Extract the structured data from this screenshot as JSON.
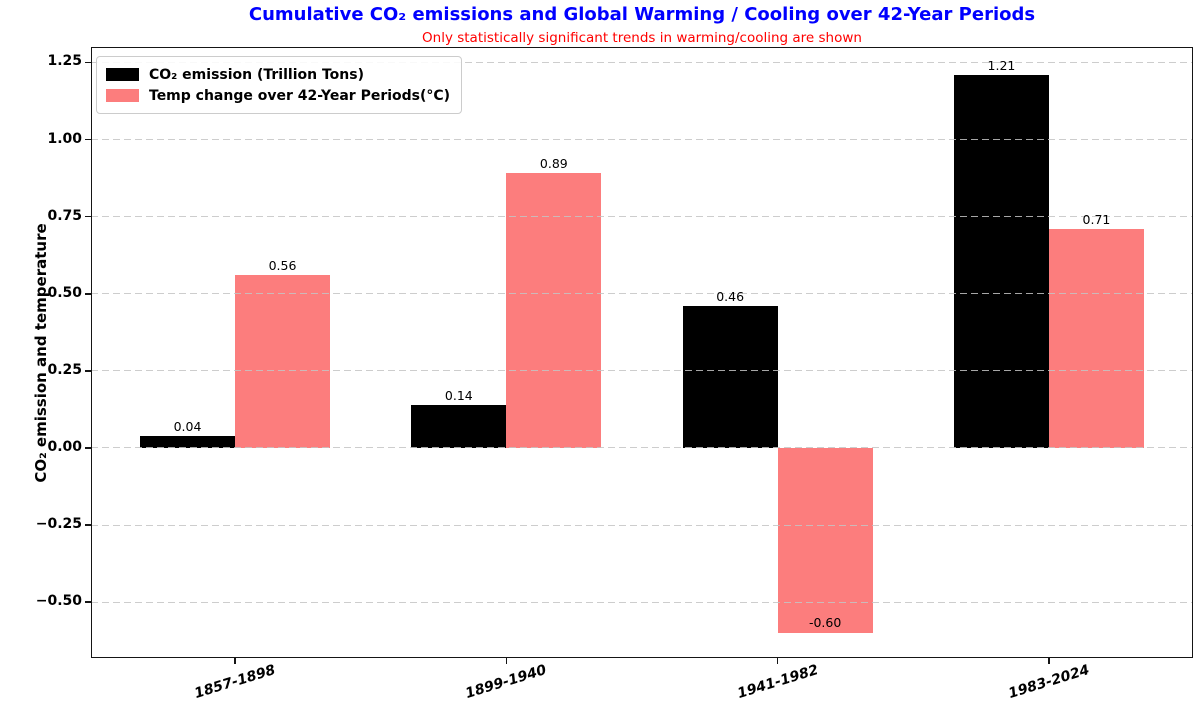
{
  "chart_data": {
    "type": "bar",
    "title": "Cumulative CO₂ emissions and Global Warming / Cooling over 42-Year Periods",
    "subtitle": "Only statistically significant trends in warming/cooling are shown",
    "title_color": "#0000ff",
    "subtitle_color": "#ff0000",
    "ylabel": "CO₂ emission and temperature",
    "categories": [
      "1857-1898",
      "1899-1940",
      "1941-1982",
      "1983-2024"
    ],
    "series": [
      {
        "key": "co2",
        "name": "CO₂ emission (Trillion Tons)",
        "color": "#000000",
        "values": [
          0.04,
          0.14,
          0.46,
          1.21
        ],
        "labels": [
          "0.04",
          "0.14",
          "0.46",
          "1.21"
        ]
      },
      {
        "key": "temp",
        "name": "Temp change over 42-Year Periods(°C)",
        "color": "#fc7d7d",
        "values": [
          0.56,
          0.89,
          -0.6,
          0.71
        ],
        "labels": [
          "0.56",
          "0.89",
          "-0.60",
          "0.71"
        ]
      }
    ],
    "yticks": [
      {
        "value": 1.25,
        "label": "1.25"
      },
      {
        "value": 1.0,
        "label": "1.00"
      },
      {
        "value": 0.75,
        "label": "0.75"
      },
      {
        "value": 0.5,
        "label": "0.50"
      },
      {
        "value": 0.25,
        "label": "0.25"
      },
      {
        "value": 0.0,
        "label": "0.00"
      },
      {
        "value": -0.25,
        "label": "−0.25"
      },
      {
        "value": -0.5,
        "label": "−0.50"
      }
    ],
    "ylim": [
      -0.681,
      1.3
    ],
    "grid": {
      "axis": "y",
      "style": "dashed",
      "color": "#c4c4c4",
      "above_bars": true
    },
    "legend_position": "upper left"
  }
}
